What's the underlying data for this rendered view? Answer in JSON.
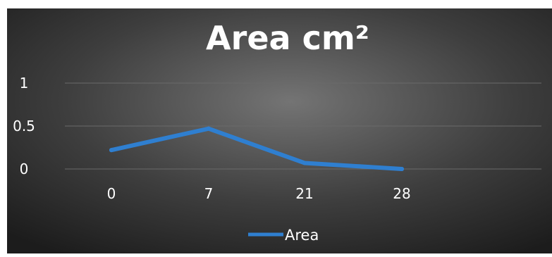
{
  "chart_data": {
    "type": "line",
    "title": "Area cm²",
    "x": [
      "0",
      "7",
      "21",
      "28"
    ],
    "series": [
      {
        "name": "Area",
        "values": [
          0.22,
          0.47,
          0.07,
          0.0
        ]
      }
    ],
    "ylim": [
      0,
      1
    ],
    "yticks": [
      {
        "value": 1,
        "label": "1"
      },
      {
        "value": 0.5,
        "label": "0.5"
      },
      {
        "value": 0,
        "label": "0"
      }
    ],
    "grid": true,
    "legend_position": "bottom"
  },
  "colors": {
    "series": "#2f7fd0",
    "gridline": "#6a6a6a",
    "text": "#ffffff",
    "background_center": "#707070",
    "background_edge": "#1e1e1e"
  }
}
